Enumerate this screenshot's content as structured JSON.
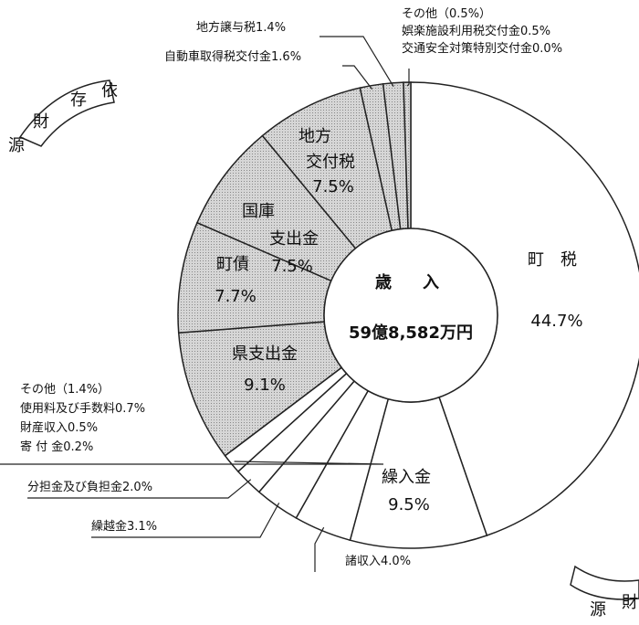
{
  "chart_data": {
    "type": "pie",
    "center_title": "歳　入",
    "center_total": "59億8,582万円",
    "categories": [
      "町　税",
      "繰入金",
      "諸収入",
      "繰越金",
      "分担金及び負担金",
      "その他",
      "県支出金",
      "町債",
      "国庫支出金",
      "地方交付税",
      "自動車取得税交付金",
      "地方譲与税",
      "その他"
    ],
    "values": [
      44.7,
      9.5,
      4.0,
      3.1,
      2.0,
      1.4,
      9.1,
      7.7,
      7.5,
      7.5,
      1.6,
      1.4,
      0.5
    ],
    "value_labels": [
      "44.7%",
      "9.5%",
      "4.0%",
      "3.1%",
      "2.0%",
      "（1.4%）",
      "9.1%",
      "7.7%",
      "7.5%",
      "7.5%",
      "1.6%",
      "1.4%",
      "（0.5%）"
    ],
    "colors": [
      "#ffffff",
      "#ffffff",
      "#ffffff",
      "#ffffff",
      "#ffffff",
      "#ffffff",
      "#d6d6d6",
      "#d6d6d6",
      "#d6d6d6",
      "#d6d6d6",
      "#d6d6d6",
      "#d6d6d6",
      "#d6d6d6"
    ],
    "breakdown": {
      "5": [
        {
          "name": "使用料及び手数料",
          "value": 0.7,
          "value_label": "0.7%"
        },
        {
          "name": "財産収入",
          "value": 0.5,
          "value_label": "0.5%"
        },
        {
          "name": "寄 付 金",
          "value": 0.2,
          "value_label": "0.2%"
        }
      ],
      "12": [
        {
          "name": "娯楽施設利用税交付金",
          "value": 0.5,
          "value_label": "0.5%"
        },
        {
          "name": "交通安全対策特別交付金",
          "value": 0.0,
          "value_label": "0.0%"
        }
      ]
    },
    "arc_labels": [
      [
        "依",
        "存",
        "財",
        "源"
      ],
      [
        "財",
        "源"
      ]
    ]
  }
}
